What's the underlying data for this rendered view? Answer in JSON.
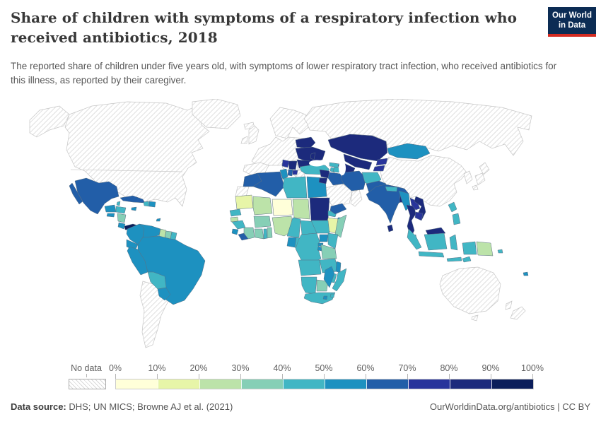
{
  "header": {
    "title": "Share of children with symptoms of a respiratory infection who received antibiotics, 2018",
    "subtitle": "The reported share of children under five years old, with symptoms of lower respiratory tract infection, who received antibiotics for this illness, as reported by their caregiver.",
    "logo": {
      "line1": "Our World",
      "line2": "in Data",
      "bg_color": "#0c2c54",
      "accent_color": "#d42b21"
    }
  },
  "footer": {
    "source_label": "Data source:",
    "source_text": " DHS; UN MICS; Browne AJ et al. (2021)",
    "right_text": "OurWorldinData.org/antibiotics | CC BY"
  },
  "chart_data": {
    "type": "choropleth-map",
    "title": "Share of children with symptoms of a respiratory infection who received antibiotics",
    "year": 2018,
    "unit": "%",
    "legend": {
      "no_data_label": "No data",
      "ticks": [
        "0%",
        "10%",
        "20%",
        "30%",
        "40%",
        "50%",
        "60%",
        "70%",
        "80%",
        "90%",
        "100%"
      ],
      "colors": [
        "#ffffd9",
        "#e7f5a8",
        "#bce3a9",
        "#86cfb6",
        "#41b6c4",
        "#1d91c0",
        "#225ea8",
        "#28349b",
        "#1c2a7c",
        "#0b1e5b"
      ]
    },
    "regions": {
      "Canada and United States": "No data",
      "Alaska": "No data",
      "Greenland": "No data",
      "Iceland": "No data",
      "United Kingdom": "No data",
      "Ireland": "No data",
      "Scandinavia": "No data",
      "Central Europe": "No data",
      "Spain and Portugal": "No data",
      "Italy": "No data",
      "Greece": "No data",
      "Bulgaria": "No data",
      "Russia": "No data",
      "China": "No data",
      "South Korea": "No data",
      "Japan": "No data",
      "Saudi Arabia": "No data",
      "Oman": "No data",
      "Australia": "No data",
      "New Zealand": "No data",
      "Argentina and Chile": "No data",
      "Western Sahara": "No data",
      "Mexico": "60-70%",
      "Belize": "40-50%",
      "Guatemala": "50-60%",
      "Honduras": "40-50%",
      "El Salvador": "50-60%",
      "Nicaragua": "30-40%",
      "Costa Rica": "50-60%",
      "Panama": "90-100%",
      "Cuba": "60-70%",
      "Jamaica": "50-60%",
      "Haiti": "40-50%",
      "Dominican Republic": "50-60%",
      "Trinidad and Tobago": "50-60%",
      "Colombia": "50-60%",
      "Venezuela": "50-60%",
      "Guyana": "20-30%",
      "Suriname": "30-40%",
      "French Guiana": "40-50%",
      "Ecuador": "50-60%",
      "Peru": "50-60%",
      "Brazil": "50-60%",
      "Bolivia": "40-50%",
      "Paraguay": "50-60%",
      "Belarus": "80-90%",
      "Ukraine": "80-90%",
      "Moldova": "80-90%",
      "Romania": "80-90%",
      "Serbia": "80-90%",
      "Bosnia and Herzegovina": "70-80%",
      "Albania": "60-70%",
      "North Macedonia": "70-80%",
      "Turkey": "40-50%",
      "Georgia": "40-50%",
      "Armenia": "40-50%",
      "Azerbaijan": "40-50%",
      "Kazakhstan": "80-90%",
      "Uzbekistan": "80-90%",
      "Turkmenistan": "80-90%",
      "Kyrgyzstan": "70-80%",
      "Tajikistan": "70-80%",
      "Mongolia": "50-60%",
      "Syria": "80-90%",
      "Jordan": "80-90%",
      "Iraq": "60-70%",
      "Iran": "60-70%",
      "Yemen": "60-70%",
      "Afghanistan": "40-50%",
      "Pakistan": "60-70%",
      "India": "60-70%",
      "Nepal": "40-50%",
      "Bangladesh": "80-90%",
      "Sri Lanka": "80-90%",
      "Myanmar": "50-60%",
      "Thailand": "80-90%",
      "Laos": "70-80%",
      "Vietnam": "80-90%",
      "Cambodia": "70-80%",
      "Malaysia (Peninsular)": "40-50%",
      "Malaysia (Borneo)": "80-90%",
      "Indonesia (Sumatra)": "40-50%",
      "Indonesia (Java)": "40-50%",
      "Indonesia (Kalimantan)": "40-50%",
      "Indonesia (Sulawesi)": "40-50%",
      "Indonesia (Papua)": "40-50%",
      "Lesser Sunda Islands": "40-50%",
      "Timor-Leste": "40-50%",
      "Papua New Guinea": "20-30%",
      "Solomon Islands": "40-50%",
      "Philippines (Luzon)": "40-50%",
      "Philippines (Mindanao)": "40-50%",
      "Fiji": "50-60%",
      "Morocco": "60-70%",
      "Algeria": "60-70%",
      "Tunisia": "50-60%",
      "Libya": "40-50%",
      "Egypt": "50-60%",
      "Mauritania": "10-20%",
      "Mali": "20-30%",
      "Niger": "0-10%",
      "Chad": "20-30%",
      "Sudan": "80-90%",
      "Eritrea": "40-50%",
      "Djibouti": "50-60%",
      "Ethiopia": "10-20%",
      "Somalia": "30-40%",
      "Senegal": "40-50%",
      "Guinea-Bissau": "20-30%",
      "Guinea": "40-50%",
      "Sierra Leone": "50-60%",
      "Liberia": "60-70%",
      "Cote d'Ivoire": "30-40%",
      "Ghana": "30-40%",
      "Togo": "40-50%",
      "Benin": "30-40%",
      "Burkina Faso": "30-40%",
      "Nigeria": "20-30%",
      "Cameroon": "40-50%",
      "Central African Republic": "40-50%",
      "South Sudan": "40-50%",
      "Gabon": "50-60%",
      "Congo": "40-50%",
      "Democratic Republic of Congo": "40-50%",
      "Uganda": "50-60%",
      "Kenya": "40-50%",
      "Rwanda": "50-60%",
      "Burundi": "50-60%",
      "Tanzania": "30-40%",
      "Angola": "40-50%",
      "Zambia": "40-50%",
      "Malawi": "50-60%",
      "Mozambique": "40-50%",
      "Zimbabwe": "40-50%",
      "Namibia": "40-50%",
      "Botswana": "30-40%",
      "South Africa": "40-50%",
      "Lesotho": "50-60%",
      "Eswatini": "40-50%",
      "Madagascar": "50-60%"
    }
  }
}
